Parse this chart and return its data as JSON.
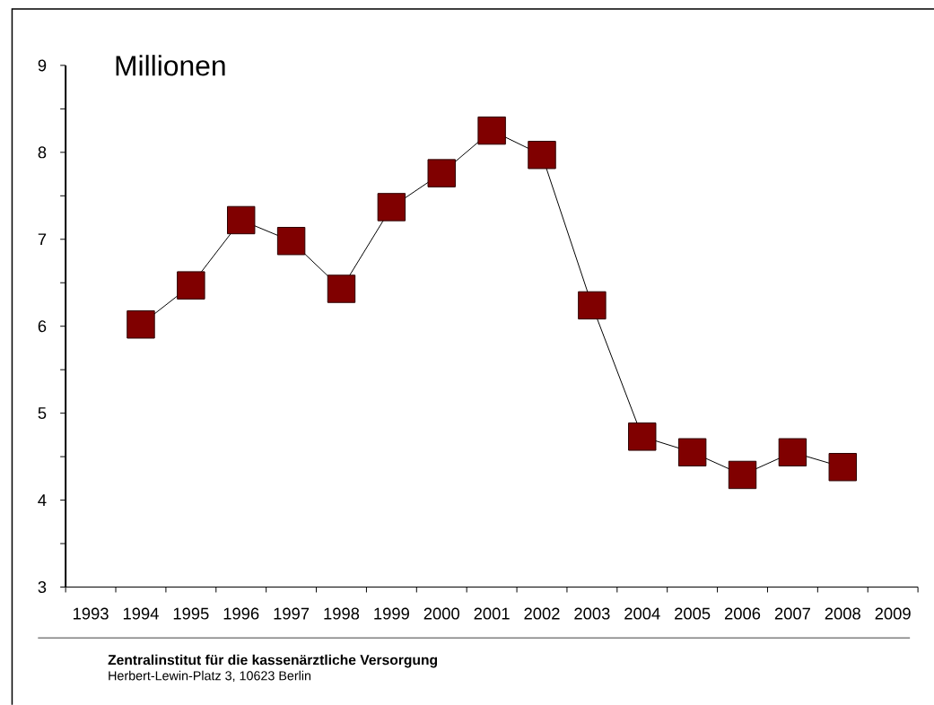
{
  "chart_data": {
    "type": "line",
    "ylabel": "Millionen",
    "categories": [
      "1993",
      "1994",
      "1995",
      "1996",
      "1997",
      "1998",
      "1999",
      "2000",
      "2001",
      "2002",
      "2003",
      "2004",
      "2005",
      "2006",
      "2007",
      "2008",
      "2009"
    ],
    "series": [
      {
        "color": "#800000",
        "values": [
          null,
          6.02,
          6.47,
          7.22,
          6.98,
          6.43,
          7.37,
          7.76,
          8.25,
          7.97,
          6.24,
          4.73,
          4.55,
          4.29,
          4.55,
          4.38,
          null
        ]
      }
    ],
    "ylim": [
      3,
      9
    ],
    "yticks": [
      3,
      {
        "value": 3.5,
        "label": null
      },
      4,
      {
        "value": 4.5,
        "label": null
      },
      5,
      {
        "value": 5.5,
        "label": null
      },
      6,
      {
        "value": 6.5,
        "label": null
      },
      7,
      {
        "value": 7.5,
        "label": null
      },
      8,
      {
        "value": 8.5,
        "label": null
      },
      9
    ],
    "marker": "square",
    "line_style": "solid",
    "annotations": [
      "Zentralinstitut für die kassenärztliche Versorgung",
      "Herbert-Lewin-Platz 3, 10623 Berlin"
    ]
  }
}
